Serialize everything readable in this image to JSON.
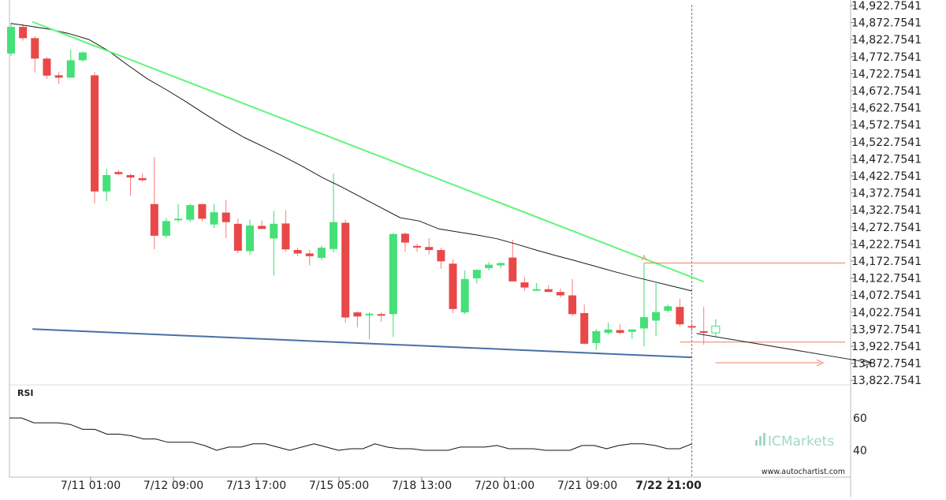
{
  "chart_data": {
    "type": "candlestick",
    "price_axis": {
      "ticks": [
        "14,922.7541",
        "14,872.7541",
        "14,822.7541",
        "14,772.7541",
        "14,722.7541",
        "14,672.7541",
        "14,622.7541",
        "14,572.7541",
        "14,522.7541",
        "14,472.7541",
        "14,422.7541",
        "14,372.7541",
        "14,322.7541",
        "14,272.7541",
        "14,222.7541",
        "14,172.7541",
        "14,122.7541",
        "14,072.7541",
        "14,022.7541",
        "13,972.7541",
        "13,922.7541",
        "13,872.7541",
        "13,822.7541"
      ],
      "range": [
        13800,
        14930
      ]
    },
    "time_axis": {
      "labels": [
        "7/11 01:00",
        "7/12 09:00",
        "7/13 17:00",
        "7/15 05:00",
        "7/18 13:00",
        "7/20 01:00",
        "7/21 09:00",
        "7/22 21:00"
      ],
      "highlight_label": "7/22 21:00"
    },
    "candles": [
      {
        "o": 14782,
        "h": 14873,
        "l": 14775,
        "c": 14860
      },
      {
        "o": 14860,
        "h": 14868,
        "l": 14820,
        "c": 14827
      },
      {
        "o": 14827,
        "h": 14833,
        "l": 14726,
        "c": 14767
      },
      {
        "o": 14767,
        "h": 14772,
        "l": 14708,
        "c": 14717
      },
      {
        "o": 14718,
        "h": 14728,
        "l": 14693,
        "c": 14711
      },
      {
        "o": 14711,
        "h": 14793,
        "l": 14711,
        "c": 14762
      },
      {
        "o": 14762,
        "h": 14788,
        "l": 14758,
        "c": 14785
      },
      {
        "o": 14718,
        "h": 14728,
        "l": 14342,
        "c": 14377
      },
      {
        "o": 14377,
        "h": 14444,
        "l": 14348,
        "c": 14425
      },
      {
        "o": 14434,
        "h": 14440,
        "l": 14425,
        "c": 14428
      },
      {
        "o": 14425,
        "h": 14430,
        "l": 14365,
        "c": 14418
      },
      {
        "o": 14416,
        "h": 14430,
        "l": 14405,
        "c": 14410
      },
      {
        "o": 14340,
        "h": 14478,
        "l": 14207,
        "c": 14247
      },
      {
        "o": 14247,
        "h": 14300,
        "l": 14240,
        "c": 14290
      },
      {
        "o": 14293,
        "h": 14340,
        "l": 14287,
        "c": 14297
      },
      {
        "o": 14294,
        "h": 14342,
        "l": 14287,
        "c": 14337
      },
      {
        "o": 14340,
        "h": 14340,
        "l": 14290,
        "c": 14297
      },
      {
        "o": 14280,
        "h": 14340,
        "l": 14270,
        "c": 14316
      },
      {
        "o": 14315,
        "h": 14352,
        "l": 14240,
        "c": 14287
      },
      {
        "o": 14282,
        "h": 14297,
        "l": 14195,
        "c": 14203
      },
      {
        "o": 14202,
        "h": 14295,
        "l": 14192,
        "c": 14277
      },
      {
        "o": 14276,
        "h": 14292,
        "l": 14267,
        "c": 14267
      },
      {
        "o": 14239,
        "h": 14320,
        "l": 14130,
        "c": 14282
      },
      {
        "o": 14283,
        "h": 14322,
        "l": 14200,
        "c": 14207
      },
      {
        "o": 14205,
        "h": 14212,
        "l": 14188,
        "c": 14195
      },
      {
        "o": 14195,
        "h": 14205,
        "l": 14160,
        "c": 14187
      },
      {
        "o": 14182,
        "h": 14218,
        "l": 14175,
        "c": 14212
      },
      {
        "o": 14208,
        "h": 14430,
        "l": 14198,
        "c": 14287
      },
      {
        "o": 14285,
        "h": 14295,
        "l": 13992,
        "c": 14007
      },
      {
        "o": 14022,
        "h": 14025,
        "l": 13978,
        "c": 14010
      },
      {
        "o": 14017,
        "h": 14022,
        "l": 13943,
        "c": 14018
      },
      {
        "o": 14017,
        "h": 14022,
        "l": 13995,
        "c": 14016
      },
      {
        "o": 14017,
        "h": 14255,
        "l": 13950,
        "c": 14252
      },
      {
        "o": 14253,
        "h": 14257,
        "l": 14200,
        "c": 14227
      },
      {
        "o": 14217,
        "h": 14224,
        "l": 14200,
        "c": 14214
      },
      {
        "o": 14214,
        "h": 14240,
        "l": 14192,
        "c": 14205
      },
      {
        "o": 14205,
        "h": 14212,
        "l": 14150,
        "c": 14172
      },
      {
        "o": 14165,
        "h": 14178,
        "l": 14020,
        "c": 14032
      },
      {
        "o": 14022,
        "h": 14145,
        "l": 14017,
        "c": 14120
      },
      {
        "o": 14122,
        "h": 14148,
        "l": 14107,
        "c": 14147
      },
      {
        "o": 14152,
        "h": 14170,
        "l": 14145,
        "c": 14162
      },
      {
        "o": 14160,
        "h": 14168,
        "l": 14152,
        "c": 14167
      },
      {
        "o": 14183,
        "h": 14235,
        "l": 14117,
        "c": 14113
      },
      {
        "o": 14110,
        "h": 14125,
        "l": 14085,
        "c": 14095
      },
      {
        "o": 14090,
        "h": 14108,
        "l": 14085,
        "c": 14090
      },
      {
        "o": 14090,
        "h": 14102,
        "l": 14082,
        "c": 14082
      },
      {
        "o": 14082,
        "h": 14092,
        "l": 14065,
        "c": 14072
      },
      {
        "o": 14072,
        "h": 14120,
        "l": 14010,
        "c": 14017
      },
      {
        "o": 14020,
        "h": 14045,
        "l": 13928,
        "c": 13930
      },
      {
        "o": 13932,
        "h": 13973,
        "l": 13912,
        "c": 13967
      },
      {
        "o": 13962,
        "h": 13992,
        "l": 13957,
        "c": 13972
      },
      {
        "o": 13970,
        "h": 13987,
        "l": 13958,
        "c": 13962
      },
      {
        "o": 13965,
        "h": 13970,
        "l": 13944,
        "c": 13972
      },
      {
        "o": 13975,
        "h": 14166,
        "l": 13922,
        "c": 14008
      },
      {
        "o": 13998,
        "h": 14108,
        "l": 13952,
        "c": 14023
      },
      {
        "o": 14027,
        "h": 14045,
        "l": 14022,
        "c": 14040
      },
      {
        "o": 14038,
        "h": 14062,
        "l": 13980,
        "c": 13987
      },
      {
        "o": 13982,
        "h": 13990,
        "l": 13965,
        "c": 13980
      },
      {
        "o": 13967,
        "h": 14038,
        "l": 13927,
        "c": 13962
      },
      {
        "o": 13962,
        "h": 14002,
        "l": 13950,
        "c": 13982
      }
    ],
    "moving_average": [
      14870,
      14862,
      14853,
      14840,
      14823,
      14790,
      14748,
      14708,
      14675,
      14640,
      14603,
      14568,
      14535,
      14508,
      14480,
      14450,
      14418,
      14390,
      14360,
      14330,
      14300,
      14290,
      14267,
      14258,
      14249,
      14238,
      14222,
      14205,
      14189,
      14174,
      14158,
      14142,
      14127,
      14113,
      14099,
      14085
    ],
    "trendline_top": {
      "start": {
        "bar": 1,
        "price": 14875
      },
      "end": {
        "bar": 58,
        "price": 14112
      }
    },
    "trendline_bottom": {
      "start": {
        "bar": 1,
        "price": 13973
      },
      "end": {
        "bar": 57,
        "price": 13890
      }
    },
    "projection": {
      "start": {
        "bar": 57,
        "price": 13960
      },
      "end": {
        "bar": 72,
        "price": 13874
      }
    },
    "breakout_point": {
      "bar": 53,
      "price": 14166,
      "label": "A"
    },
    "level_lines": [
      14167,
      13935,
      13874
    ],
    "rsi": {
      "label": "RSI",
      "ticks": [
        "60",
        "40"
      ],
      "range": [
        30,
        70
      ],
      "values": [
        60,
        60,
        57,
        57,
        57,
        56,
        53,
        53,
        50,
        50,
        49,
        47,
        47,
        45,
        45,
        45,
        43,
        40,
        42,
        42,
        44,
        44,
        42,
        40,
        42,
        44,
        42,
        40,
        41,
        41,
        44,
        42,
        41,
        41,
        40,
        40,
        40,
        42,
        42,
        42,
        43,
        41,
        41,
        41,
        40,
        40,
        40,
        43,
        43,
        41,
        43,
        44,
        44,
        43,
        41,
        41,
        44
      ]
    },
    "watermark": "ICMarkets",
    "footer": "www.autochartist.com",
    "colors": {
      "bull": "#45e078",
      "bear": "#e84848",
      "wick": "#ff7a7a",
      "wick_bull": "#3cdc6e",
      "ma": "#1a1a1a",
      "trend_top": "#5ff57a",
      "trend_bottom": "#4a6fa5",
      "level": "#e8805f",
      "grid": "#cccccc"
    }
  }
}
